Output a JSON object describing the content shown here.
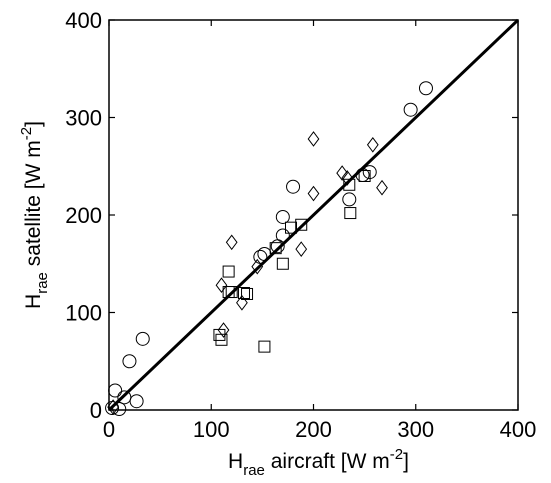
{
  "chart_data": {
    "type": "scatter",
    "xlabel": {
      "main": "H",
      "sub": "rae",
      "rest": " aircraft [W m",
      "sup": "-2",
      "end": "]"
    },
    "ylabel": {
      "main": "H",
      "sub": "rae",
      "rest": " satellite [W m",
      "sup": "-2",
      "end": "]"
    },
    "xlim": [
      0,
      400
    ],
    "ylim": [
      0,
      400
    ],
    "xticks": [
      "0",
      "100",
      "200",
      "300",
      "400"
    ],
    "yticks": [
      "0",
      "100",
      "200",
      "300",
      "400"
    ],
    "grid": false,
    "legend": "none",
    "reference_line": {
      "x": [
        0,
        400
      ],
      "y": [
        0,
        400
      ],
      "color": "#000000"
    },
    "series": [
      {
        "marker": "circle",
        "points": [
          [
            3,
            2
          ],
          [
            6,
            20
          ],
          [
            10,
            1
          ],
          [
            15,
            13
          ],
          [
            20,
            50
          ],
          [
            27,
            9
          ],
          [
            33,
            73
          ],
          [
            148,
            157
          ],
          [
            152,
            160
          ],
          [
            165,
            168
          ],
          [
            170,
            179
          ],
          [
            170,
            198
          ],
          [
            180,
            229
          ],
          [
            235,
            216
          ],
          [
            248,
            241
          ],
          [
            255,
            244
          ],
          [
            295,
            308
          ],
          [
            310,
            330
          ]
        ]
      },
      {
        "marker": "square",
        "points": [
          [
            108,
            77
          ],
          [
            110,
            72
          ],
          [
            117,
            142
          ],
          [
            117,
            121
          ],
          [
            120,
            121
          ],
          [
            132,
            120
          ],
          [
            135,
            119
          ],
          [
            152,
            65
          ],
          [
            163,
            166
          ],
          [
            170,
            150
          ],
          [
            178,
            187
          ],
          [
            188,
            190
          ],
          [
            235,
            231
          ],
          [
            236,
            202
          ],
          [
            250,
            240
          ]
        ]
      },
      {
        "marker": "diamond",
        "points": [
          [
            4,
            3
          ],
          [
            110,
            128
          ],
          [
            112,
            82
          ],
          [
            120,
            172
          ],
          [
            130,
            110
          ],
          [
            145,
            147
          ],
          [
            188,
            165
          ],
          [
            200,
            278
          ],
          [
            200,
            222
          ],
          [
            228,
            243
          ],
          [
            233,
            238
          ],
          [
            258,
            272
          ],
          [
            267,
            228
          ]
        ]
      }
    ]
  }
}
